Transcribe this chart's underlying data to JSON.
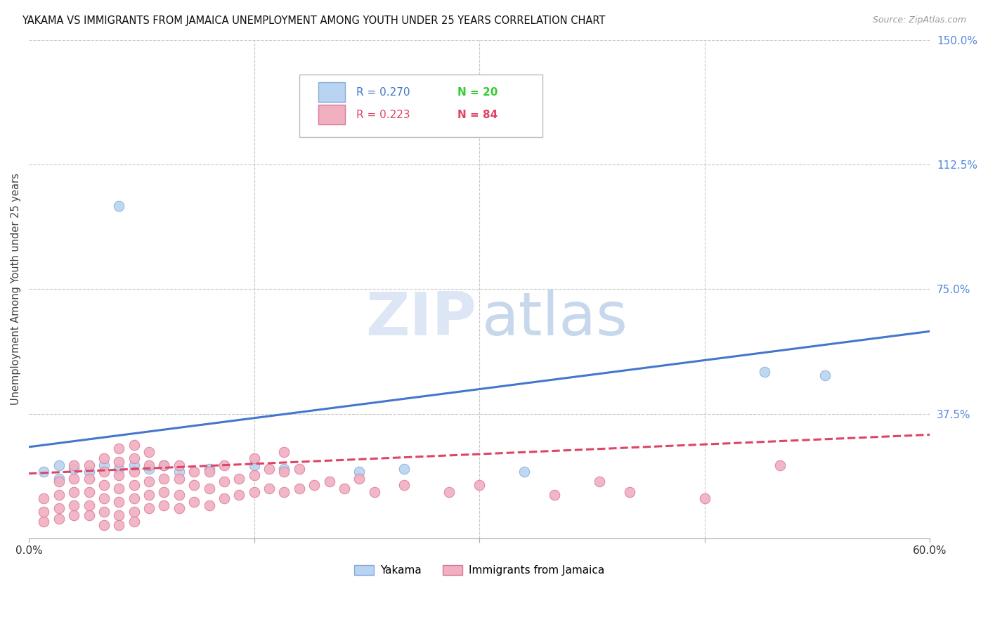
{
  "title": "YAKAMA VS IMMIGRANTS FROM JAMAICA UNEMPLOYMENT AMONG YOUTH UNDER 25 YEARS CORRELATION CHART",
  "source": "Source: ZipAtlas.com",
  "ylabel": "Unemployment Among Youth under 25 years",
  "x_min": 0.0,
  "x_max": 0.6,
  "y_min": 0.0,
  "y_max": 1.5,
  "y_ticks_right": [
    1.5,
    1.125,
    0.75,
    0.375,
    0.0
  ],
  "y_tick_labels_right": [
    "150.0%",
    "112.5%",
    "75.0%",
    "37.5%",
    ""
  ],
  "background_color": "#ffffff",
  "grid_color": "#c8c8c8",
  "watermark_zip_color": "#dde6f5",
  "watermark_atlas_color": "#c8d8ec",
  "series": [
    {
      "name": "Yakama",
      "color": "#b8d4f0",
      "edge_color": "#88aadd",
      "trend_color": "#4477cc",
      "trend_style": "solid",
      "trend_intercept": 0.275,
      "trend_slope": 0.58,
      "points": [
        [
          0.01,
          0.2
        ],
        [
          0.02,
          0.22
        ],
        [
          0.03,
          0.21
        ],
        [
          0.04,
          0.2
        ],
        [
          0.05,
          0.22
        ],
        [
          0.06,
          0.21
        ],
        [
          0.06,
          1.0
        ],
        [
          0.07,
          0.22
        ],
        [
          0.08,
          0.21
        ],
        [
          0.09,
          0.22
        ],
        [
          0.1,
          0.2
        ],
        [
          0.12,
          0.21
        ],
        [
          0.15,
          0.22
        ],
        [
          0.17,
          0.21
        ],
        [
          0.22,
          0.2
        ],
        [
          0.25,
          0.21
        ],
        [
          0.33,
          0.2
        ],
        [
          0.49,
          0.5
        ],
        [
          0.53,
          0.49
        ],
        [
          0.02,
          0.18
        ]
      ]
    },
    {
      "name": "Immigrants from Jamaica",
      "color": "#f0b0c0",
      "edge_color": "#dd7799",
      "trend_color": "#dd4466",
      "trend_style": "dashed",
      "trend_intercept": 0.195,
      "trend_slope": 0.195,
      "points": [
        [
          0.01,
          0.05
        ],
        [
          0.01,
          0.08
        ],
        [
          0.01,
          0.12
        ],
        [
          0.02,
          0.06
        ],
        [
          0.02,
          0.09
        ],
        [
          0.02,
          0.13
        ],
        [
          0.02,
          0.17
        ],
        [
          0.03,
          0.07
        ],
        [
          0.03,
          0.1
        ],
        [
          0.03,
          0.14
        ],
        [
          0.03,
          0.18
        ],
        [
          0.03,
          0.22
        ],
        [
          0.04,
          0.07
        ],
        [
          0.04,
          0.1
        ],
        [
          0.04,
          0.14
        ],
        [
          0.04,
          0.18
        ],
        [
          0.04,
          0.22
        ],
        [
          0.05,
          0.08
        ],
        [
          0.05,
          0.12
        ],
        [
          0.05,
          0.16
        ],
        [
          0.05,
          0.2
        ],
        [
          0.05,
          0.24
        ],
        [
          0.06,
          0.07
        ],
        [
          0.06,
          0.11
        ],
        [
          0.06,
          0.15
        ],
        [
          0.06,
          0.19
        ],
        [
          0.06,
          0.23
        ],
        [
          0.06,
          0.27
        ],
        [
          0.07,
          0.08
        ],
        [
          0.07,
          0.12
        ],
        [
          0.07,
          0.16
        ],
        [
          0.07,
          0.2
        ],
        [
          0.07,
          0.24
        ],
        [
          0.07,
          0.28
        ],
        [
          0.08,
          0.09
        ],
        [
          0.08,
          0.13
        ],
        [
          0.08,
          0.17
        ],
        [
          0.08,
          0.22
        ],
        [
          0.08,
          0.26
        ],
        [
          0.09,
          0.1
        ],
        [
          0.09,
          0.14
        ],
        [
          0.09,
          0.18
        ],
        [
          0.09,
          0.22
        ],
        [
          0.1,
          0.09
        ],
        [
          0.1,
          0.13
        ],
        [
          0.1,
          0.18
        ],
        [
          0.1,
          0.22
        ],
        [
          0.11,
          0.11
        ],
        [
          0.11,
          0.16
        ],
        [
          0.11,
          0.2
        ],
        [
          0.12,
          0.1
        ],
        [
          0.12,
          0.15
        ],
        [
          0.12,
          0.2
        ],
        [
          0.13,
          0.12
        ],
        [
          0.13,
          0.17
        ],
        [
          0.13,
          0.22
        ],
        [
          0.14,
          0.13
        ],
        [
          0.14,
          0.18
        ],
        [
          0.15,
          0.14
        ],
        [
          0.15,
          0.19
        ],
        [
          0.15,
          0.24
        ],
        [
          0.16,
          0.15
        ],
        [
          0.16,
          0.21
        ],
        [
          0.17,
          0.14
        ],
        [
          0.17,
          0.2
        ],
        [
          0.17,
          0.26
        ],
        [
          0.18,
          0.15
        ],
        [
          0.18,
          0.21
        ],
        [
          0.19,
          0.16
        ],
        [
          0.2,
          0.17
        ],
        [
          0.21,
          0.15
        ],
        [
          0.22,
          0.18
        ],
        [
          0.23,
          0.14
        ],
        [
          0.25,
          0.16
        ],
        [
          0.28,
          0.14
        ],
        [
          0.3,
          0.16
        ],
        [
          0.35,
          0.13
        ],
        [
          0.38,
          0.17
        ],
        [
          0.4,
          0.14
        ],
        [
          0.45,
          0.12
        ],
        [
          0.5,
          0.22
        ],
        [
          0.05,
          0.04
        ],
        [
          0.06,
          0.04
        ],
        [
          0.07,
          0.05
        ]
      ]
    }
  ]
}
